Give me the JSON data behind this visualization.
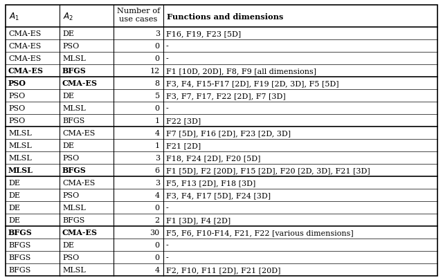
{
  "rows": [
    [
      "CMA-ES",
      "DE",
      "3",
      "F16, F19, F23 [5D]",
      false,
      false
    ],
    [
      "CMA-ES",
      "PSO",
      "0",
      "-",
      false,
      false
    ],
    [
      "CMA-ES",
      "MLSL",
      "0",
      "-",
      false,
      false
    ],
    [
      "CMA-ES",
      "BFGS",
      "12",
      "F1 [10D, 20D], F8, F9 [all dimensions]",
      true,
      true
    ],
    [
      "PSO",
      "CMA-ES",
      "8",
      "F3, F4, F15-F17 [2D], F19 [2D, 3D], F5 [5D]",
      true,
      true
    ],
    [
      "PSO",
      "DE",
      "5",
      "F3, F7, F17, F22 [2D], F7 [3D]",
      false,
      false
    ],
    [
      "PSO",
      "MLSL",
      "0",
      "-",
      false,
      false
    ],
    [
      "PSO",
      "BFGS",
      "1",
      "F22 [3D]",
      false,
      false
    ],
    [
      "MLSL",
      "CMA-ES",
      "4",
      "F7 [5D], F16 [2D], F23 [2D, 3D]",
      false,
      false
    ],
    [
      "MLSL",
      "DE",
      "1",
      "F21 [2D]",
      false,
      false
    ],
    [
      "MLSL",
      "PSO",
      "3",
      "F18, F24 [2D], F20 [5D]",
      false,
      false
    ],
    [
      "MLSL",
      "BFGS",
      "6",
      "F1 [5D], F2 [20D], F15 [2D], F20 [2D, 3D], F21 [3D]",
      true,
      true
    ],
    [
      "DE",
      "CMA-ES",
      "3",
      "F5, F13 [2D], F18 [3D]",
      false,
      false
    ],
    [
      "DE",
      "PSO",
      "4",
      "F3, F4, F17 [5D], F24 [3D]",
      false,
      false
    ],
    [
      "DE",
      "MLSL",
      "0",
      "-",
      false,
      false
    ],
    [
      "DE",
      "BFGS",
      "2",
      "F1 [3D], F4 [2D]",
      false,
      false
    ],
    [
      "BFGS",
      "CMA-ES",
      "30",
      "F5, F6, F10-F14, F21, F22 [various dimensions]",
      true,
      true
    ],
    [
      "BFGS",
      "DE",
      "0",
      "-",
      false,
      false
    ],
    [
      "BFGS",
      "PSO",
      "0",
      "-",
      false,
      false
    ],
    [
      "BFGS",
      "MLSL",
      "4",
      "F2, F10, F11 [2D], F21 [20D]",
      false,
      false
    ]
  ],
  "group_separators": [
    3,
    7,
    11,
    15
  ],
  "bg_color": "#ffffff",
  "border_color": "#000000",
  "font_size": 8.0,
  "header_font_size": 8.2
}
